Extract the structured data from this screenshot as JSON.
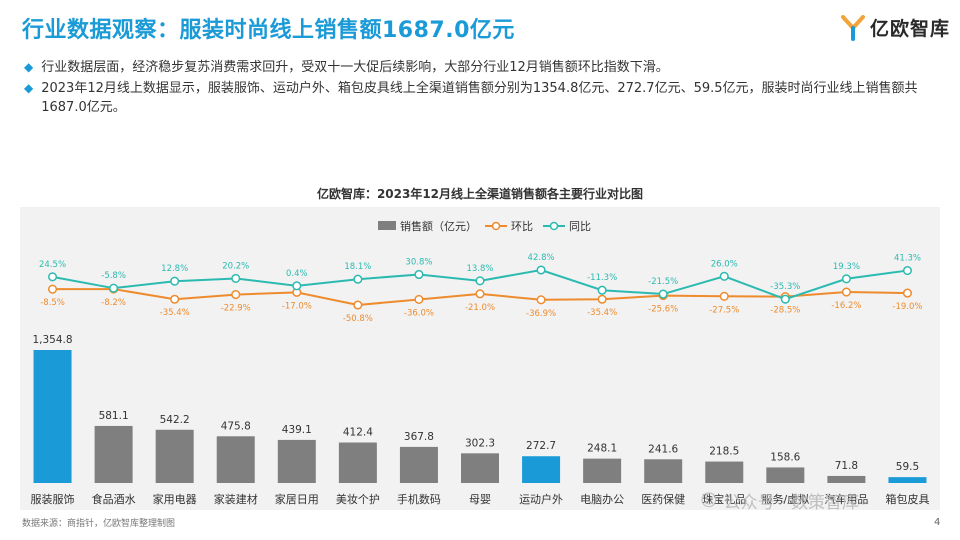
{
  "page": {
    "title": "行业数据观察：服装时尚线上销售额1687.0亿元",
    "logo_text": "亿欧智库",
    "bullets": [
      "行业数据层面，经济稳步复苏消费需求回升，受双十一大促后续影响，大部分行业12月销售额环比指数下滑。",
      "2023年12月线上数据显示，服装服饰、运动户外、箱包皮具线上全渠道销售额分别为1354.8亿元、272.7亿元、59.5亿元，服装时尚行业线上销售额共1687.0亿元。"
    ],
    "source": "数据来源：商指针，亿欧智库整理制图",
    "watermark": "公众号 · 数策智库",
    "page_number": "4"
  },
  "colors": {
    "title_blue": "#1a9ad6",
    "bar_gray": "#7f7f7f",
    "bar_highlight": "#1a9ad6",
    "mom_line": "#ee8b2d",
    "yoy_line": "#2bbab0"
  },
  "chart_data": {
    "type": "bar",
    "title": "亿欧智库：2023年12月线上全渠道销售额各主要行业对比图",
    "categories": [
      "服装服饰",
      "食品酒水",
      "家用电器",
      "家装建材",
      "家居日用",
      "美妆个护",
      "手机数码",
      "母婴",
      "运动户外",
      "电脑办公",
      "医药保健",
      "珠宝礼品",
      "服务/虚拟",
      "汽车用品",
      "箱包皮具"
    ],
    "highlight": [
      "服装服饰",
      "运动户外",
      "箱包皮具"
    ],
    "series": [
      {
        "name": "销售额（亿元）",
        "kind": "bar",
        "values": [
          1354.8,
          581.1,
          542.2,
          475.8,
          439.1,
          412.4,
          367.8,
          302.3,
          272.7,
          248.1,
          241.6,
          218.5,
          158.6,
          71.8,
          59.5
        ],
        "labels": [
          "1,354.8",
          "581.1",
          "542.2",
          "475.8",
          "439.1",
          "412.4",
          "367.8",
          "302.3",
          "272.7",
          "248.1",
          "241.6",
          "218.5",
          "158.6",
          "71.8",
          "59.5"
        ]
      },
      {
        "name": "环比",
        "kind": "line",
        "values": [
          -8.5,
          -8.2,
          -35.4,
          -22.9,
          -17.0,
          -50.8,
          -36.0,
          -21.0,
          -36.9,
          -35.4,
          -25.6,
          -27.5,
          -28.5,
          -16.2,
          -19.0
        ],
        "labels": [
          "-8.5%",
          "-8.2%",
          "-35.4%",
          "-22.9%",
          "-17.0%",
          "-50.8%",
          "-36.0%",
          "-21.0%",
          "-36.9%",
          "-35.4%",
          "-25.6%",
          "-27.5%",
          "-28.5%",
          "-16.2%",
          "-19.0%"
        ]
      },
      {
        "name": "同比",
        "kind": "line",
        "values": [
          24.5,
          -5.8,
          12.8,
          20.2,
          0.4,
          18.1,
          30.8,
          13.8,
          42.8,
          -11.3,
          -21.5,
          26.0,
          -35.3,
          19.3,
          41.3
        ],
        "labels": [
          "24.5%",
          "-5.8%",
          "12.8%",
          "20.2%",
          "0.4%",
          "18.1%",
          "30.8%",
          "13.8%",
          "42.8%",
          "-11.3%",
          "-21.5%",
          "26.0%",
          "-35.3%",
          "19.3%",
          "41.3%"
        ]
      }
    ],
    "legend": [
      "销售额（亿元）",
      "环比",
      "同比"
    ],
    "legend_position": "top-center"
  }
}
